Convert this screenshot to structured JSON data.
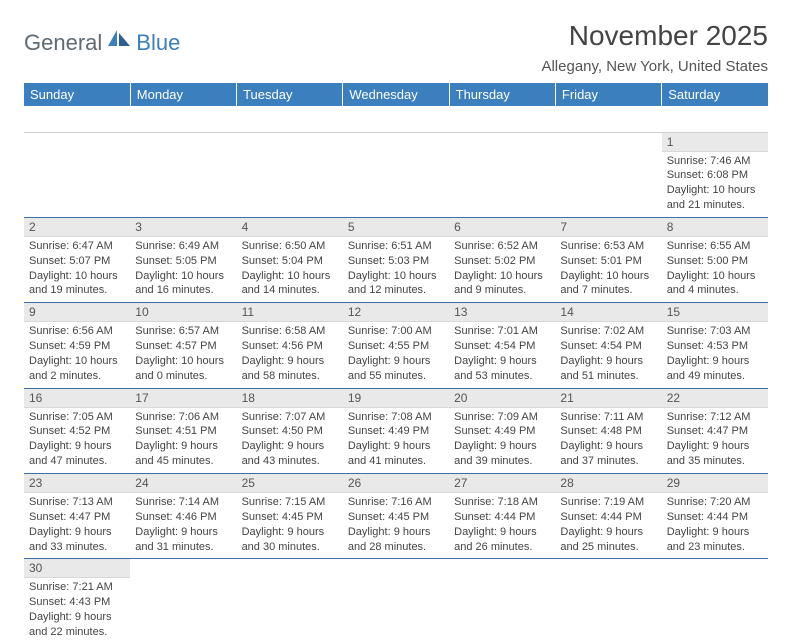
{
  "logo": {
    "part1": "General",
    "part2": "Blue"
  },
  "title": "November 2025",
  "location": "Allegany, New York, United States",
  "day_headers": [
    "Sunday",
    "Monday",
    "Tuesday",
    "Wednesday",
    "Thursday",
    "Friday",
    "Saturday"
  ],
  "colors": {
    "header_bg": "#3b7fbf",
    "header_text": "#ffffff",
    "daynum_bg": "#e9e9e9",
    "row_border": "#3b6fa8",
    "logo_gray": "#5f6a72",
    "logo_blue": "#3b7fbf",
    "title_color": "#444444",
    "body_text": "#444444",
    "background": "#ffffff"
  },
  "weeks": [
    [
      {
        "n": "",
        "sr": "",
        "ss": "",
        "dl": ""
      },
      {
        "n": "",
        "sr": "",
        "ss": "",
        "dl": ""
      },
      {
        "n": "",
        "sr": "",
        "ss": "",
        "dl": ""
      },
      {
        "n": "",
        "sr": "",
        "ss": "",
        "dl": ""
      },
      {
        "n": "",
        "sr": "",
        "ss": "",
        "dl": ""
      },
      {
        "n": "",
        "sr": "",
        "ss": "",
        "dl": ""
      },
      {
        "n": "1",
        "sr": "Sunrise: 7:46 AM",
        "ss": "Sunset: 6:08 PM",
        "dl": "Daylight: 10 hours and 21 minutes."
      }
    ],
    [
      {
        "n": "2",
        "sr": "Sunrise: 6:47 AM",
        "ss": "Sunset: 5:07 PM",
        "dl": "Daylight: 10 hours and 19 minutes."
      },
      {
        "n": "3",
        "sr": "Sunrise: 6:49 AM",
        "ss": "Sunset: 5:05 PM",
        "dl": "Daylight: 10 hours and 16 minutes."
      },
      {
        "n": "4",
        "sr": "Sunrise: 6:50 AM",
        "ss": "Sunset: 5:04 PM",
        "dl": "Daylight: 10 hours and 14 minutes."
      },
      {
        "n": "5",
        "sr": "Sunrise: 6:51 AM",
        "ss": "Sunset: 5:03 PM",
        "dl": "Daylight: 10 hours and 12 minutes."
      },
      {
        "n": "6",
        "sr": "Sunrise: 6:52 AM",
        "ss": "Sunset: 5:02 PM",
        "dl": "Daylight: 10 hours and 9 minutes."
      },
      {
        "n": "7",
        "sr": "Sunrise: 6:53 AM",
        "ss": "Sunset: 5:01 PM",
        "dl": "Daylight: 10 hours and 7 minutes."
      },
      {
        "n": "8",
        "sr": "Sunrise: 6:55 AM",
        "ss": "Sunset: 5:00 PM",
        "dl": "Daylight: 10 hours and 4 minutes."
      }
    ],
    [
      {
        "n": "9",
        "sr": "Sunrise: 6:56 AM",
        "ss": "Sunset: 4:59 PM",
        "dl": "Daylight: 10 hours and 2 minutes."
      },
      {
        "n": "10",
        "sr": "Sunrise: 6:57 AM",
        "ss": "Sunset: 4:57 PM",
        "dl": "Daylight: 10 hours and 0 minutes."
      },
      {
        "n": "11",
        "sr": "Sunrise: 6:58 AM",
        "ss": "Sunset: 4:56 PM",
        "dl": "Daylight: 9 hours and 58 minutes."
      },
      {
        "n": "12",
        "sr": "Sunrise: 7:00 AM",
        "ss": "Sunset: 4:55 PM",
        "dl": "Daylight: 9 hours and 55 minutes."
      },
      {
        "n": "13",
        "sr": "Sunrise: 7:01 AM",
        "ss": "Sunset: 4:54 PM",
        "dl": "Daylight: 9 hours and 53 minutes."
      },
      {
        "n": "14",
        "sr": "Sunrise: 7:02 AM",
        "ss": "Sunset: 4:54 PM",
        "dl": "Daylight: 9 hours and 51 minutes."
      },
      {
        "n": "15",
        "sr": "Sunrise: 7:03 AM",
        "ss": "Sunset: 4:53 PM",
        "dl": "Daylight: 9 hours and 49 minutes."
      }
    ],
    [
      {
        "n": "16",
        "sr": "Sunrise: 7:05 AM",
        "ss": "Sunset: 4:52 PM",
        "dl": "Daylight: 9 hours and 47 minutes."
      },
      {
        "n": "17",
        "sr": "Sunrise: 7:06 AM",
        "ss": "Sunset: 4:51 PM",
        "dl": "Daylight: 9 hours and 45 minutes."
      },
      {
        "n": "18",
        "sr": "Sunrise: 7:07 AM",
        "ss": "Sunset: 4:50 PM",
        "dl": "Daylight: 9 hours and 43 minutes."
      },
      {
        "n": "19",
        "sr": "Sunrise: 7:08 AM",
        "ss": "Sunset: 4:49 PM",
        "dl": "Daylight: 9 hours and 41 minutes."
      },
      {
        "n": "20",
        "sr": "Sunrise: 7:09 AM",
        "ss": "Sunset: 4:49 PM",
        "dl": "Daylight: 9 hours and 39 minutes."
      },
      {
        "n": "21",
        "sr": "Sunrise: 7:11 AM",
        "ss": "Sunset: 4:48 PM",
        "dl": "Daylight: 9 hours and 37 minutes."
      },
      {
        "n": "22",
        "sr": "Sunrise: 7:12 AM",
        "ss": "Sunset: 4:47 PM",
        "dl": "Daylight: 9 hours and 35 minutes."
      }
    ],
    [
      {
        "n": "23",
        "sr": "Sunrise: 7:13 AM",
        "ss": "Sunset: 4:47 PM",
        "dl": "Daylight: 9 hours and 33 minutes."
      },
      {
        "n": "24",
        "sr": "Sunrise: 7:14 AM",
        "ss": "Sunset: 4:46 PM",
        "dl": "Daylight: 9 hours and 31 minutes."
      },
      {
        "n": "25",
        "sr": "Sunrise: 7:15 AM",
        "ss": "Sunset: 4:45 PM",
        "dl": "Daylight: 9 hours and 30 minutes."
      },
      {
        "n": "26",
        "sr": "Sunrise: 7:16 AM",
        "ss": "Sunset: 4:45 PM",
        "dl": "Daylight: 9 hours and 28 minutes."
      },
      {
        "n": "27",
        "sr": "Sunrise: 7:18 AM",
        "ss": "Sunset: 4:44 PM",
        "dl": "Daylight: 9 hours and 26 minutes."
      },
      {
        "n": "28",
        "sr": "Sunrise: 7:19 AM",
        "ss": "Sunset: 4:44 PM",
        "dl": "Daylight: 9 hours and 25 minutes."
      },
      {
        "n": "29",
        "sr": "Sunrise: 7:20 AM",
        "ss": "Sunset: 4:44 PM",
        "dl": "Daylight: 9 hours and 23 minutes."
      }
    ],
    [
      {
        "n": "30",
        "sr": "Sunrise: 7:21 AM",
        "ss": "Sunset: 4:43 PM",
        "dl": "Daylight: 9 hours and 22 minutes."
      },
      {
        "n": "",
        "sr": "",
        "ss": "",
        "dl": ""
      },
      {
        "n": "",
        "sr": "",
        "ss": "",
        "dl": ""
      },
      {
        "n": "",
        "sr": "",
        "ss": "",
        "dl": ""
      },
      {
        "n": "",
        "sr": "",
        "ss": "",
        "dl": ""
      },
      {
        "n": "",
        "sr": "",
        "ss": "",
        "dl": ""
      },
      {
        "n": "",
        "sr": "",
        "ss": "",
        "dl": ""
      }
    ]
  ]
}
